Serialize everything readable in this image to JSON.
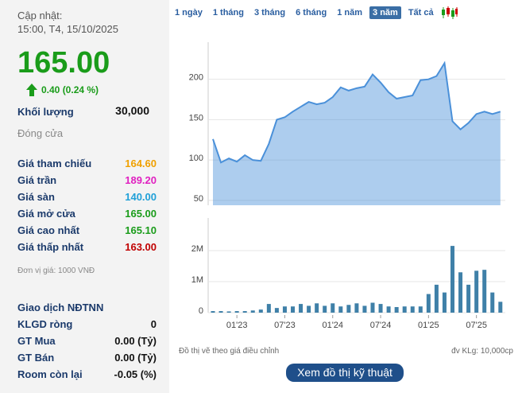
{
  "header": {
    "updated_label": "Cập nhật:",
    "updated_time": "15:00, T4, 15/10/2025"
  },
  "price": {
    "value": "165.00",
    "change": "0.40 (0.24 %)",
    "color": "#1a9c1a"
  },
  "volume_row": {
    "label": "Khối lượng",
    "value": "30,000"
  },
  "close_label": "Đóng cửa",
  "price_rows": [
    {
      "label": "Giá tham chiếu",
      "value": "164.60",
      "color": "#f0a000"
    },
    {
      "label": "Giá trần",
      "value": "189.20",
      "color": "#e020c0"
    },
    {
      "label": "Giá sàn",
      "value": "140.00",
      "color": "#20a0d8"
    },
    {
      "label": "Giá mở cửa",
      "value": "165.00",
      "color": "#1a9c1a"
    },
    {
      "label": "Giá cao nhất",
      "value": "165.10",
      "color": "#1a9c1a"
    },
    {
      "label": "Giá thấp nhất",
      "value": "163.00",
      "color": "#c00000"
    }
  ],
  "unit_note": "Đơn vị giá: 1000 VNĐ",
  "foreign": {
    "title": "Giao dịch NĐTNN",
    "rows": [
      {
        "label": "KLGD ròng",
        "value": "0"
      },
      {
        "label": "GT Mua",
        "value": "0.00 (Tỷ)"
      },
      {
        "label": "GT Bán",
        "value": "0.00 (Tỷ)"
      },
      {
        "label": "Room còn lại",
        "value": "-0.05 (%)"
      }
    ]
  },
  "tabs": {
    "items": [
      "1 ngày",
      "1 tháng",
      "3 tháng",
      "6 tháng",
      "1 năm",
      "3 năm",
      "Tất cả"
    ],
    "active": 5
  },
  "chart_data": [
    {
      "type": "area",
      "color": "#4a90d9",
      "ylim": [
        44,
        246
      ],
      "yticks": [
        50,
        100,
        150,
        200
      ],
      "grid": true,
      "values": [
        126,
        97,
        102,
        98,
        106,
        100,
        99,
        120,
        150,
        153,
        160,
        166,
        172,
        169,
        171,
        178,
        190,
        186,
        189,
        191,
        206,
        196,
        184,
        176,
        178,
        180,
        199,
        200,
        204,
        220,
        148,
        138,
        146,
        157,
        160,
        157,
        160
      ]
    },
    {
      "type": "bar",
      "color": "#3f80a8",
      "ylim": [
        0,
        3050000
      ],
      "yticks": [
        0,
        {
          "value": 1000000,
          "label": "1M"
        },
        {
          "value": 2000000,
          "label": "2M"
        }
      ],
      "grid": true,
      "categories": [
        null,
        null,
        null,
        "01'23",
        null,
        null,
        null,
        null,
        null,
        "07'23",
        null,
        null,
        null,
        null,
        null,
        "01'24",
        null,
        null,
        null,
        null,
        null,
        "07'24",
        null,
        null,
        null,
        null,
        null,
        "01'25",
        null,
        null,
        null,
        null,
        null,
        "07'25",
        null,
        null,
        null
      ],
      "values": [
        50000,
        50000,
        40000,
        50000,
        50000,
        70000,
        100000,
        280000,
        150000,
        200000,
        200000,
        280000,
        220000,
        300000,
        220000,
        300000,
        200000,
        250000,
        300000,
        220000,
        320000,
        280000,
        200000,
        180000,
        200000,
        200000,
        200000,
        600000,
        900000,
        650000,
        2150000,
        1300000,
        900000,
        1350000,
        1380000,
        650000,
        350000
      ]
    }
  ],
  "footer": {
    "left": "Đồ thị vẽ theo giá điều chỉnh",
    "right": "đv KLg: 10,000cp",
    "button": "Xem đồ thị kỹ thuật"
  }
}
